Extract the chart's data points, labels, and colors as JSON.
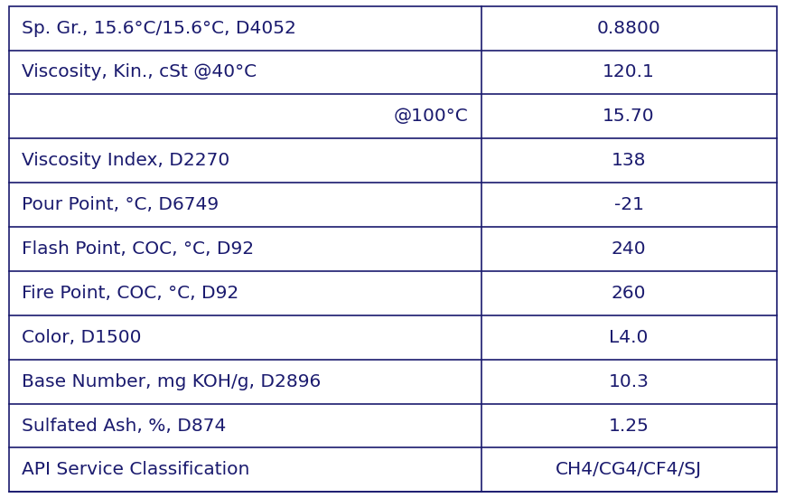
{
  "rows": [
    {
      "label": "Sp. Gr., 15.6°C/15.6°C, D4052",
      "value": "0.8800",
      "label_align": "left"
    },
    {
      "label": "Viscosity, Kin., cSt @40°C",
      "value": "120.1",
      "label_align": "left"
    },
    {
      "label": "@100°C",
      "value": "15.70",
      "label_align": "right"
    },
    {
      "label": "Viscosity Index, D2270",
      "value": "138",
      "label_align": "left"
    },
    {
      "label": "Pour Point, °C, D6749",
      "value": "-21",
      "label_align": "left"
    },
    {
      "label": "Flash Point, COC, °C, D92",
      "value": "240",
      "label_align": "left"
    },
    {
      "label": "Fire Point, COC, °C, D92",
      "value": "260",
      "label_align": "left"
    },
    {
      "label": "Color, D1500",
      "value": "L4.0",
      "label_align": "left"
    },
    {
      "label": "Base Number, mg KOH/g, D2896",
      "value": "10.3",
      "label_align": "left"
    },
    {
      "label": "Sulfated Ash, %, D874",
      "value": "1.25",
      "label_align": "left"
    },
    {
      "label": "API Service Classification",
      "value": "CH4/CG4/CF4/SJ",
      "label_align": "left"
    }
  ],
  "bg_color": "#ffffff",
  "border_color": "#1a1a6e",
  "text_color": "#1a1a6e",
  "font_size": 14.5,
  "col_split": 0.615,
  "fig_width": 8.7,
  "fig_height": 5.51,
  "dpi": 100
}
